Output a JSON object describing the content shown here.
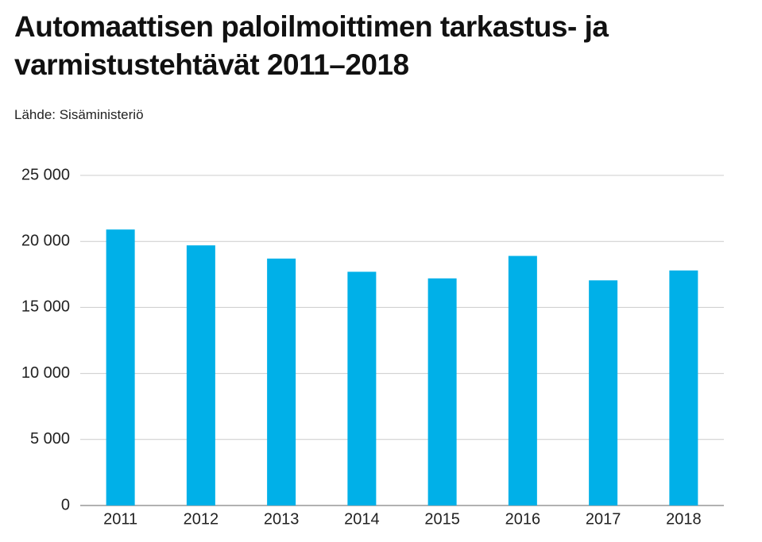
{
  "chart_data": {
    "type": "bar",
    "title": "Automaattisen paloilmoittimen tarkastus- ja varmistustehtävät 2011–2018",
    "subtitle": "Lähde: Sisäministeriö",
    "categories": [
      "2011",
      "2012",
      "2013",
      "2014",
      "2015",
      "2016",
      "2017",
      "2018"
    ],
    "values": [
      20900,
      19700,
      18700,
      17700,
      17200,
      18900,
      17050,
      17800
    ],
    "color": "#00b0e8",
    "ylim": [
      0,
      25000
    ],
    "yticks": [
      0,
      {
        "value": 5000,
        "label": "5 000"
      },
      {
        "value": 10000,
        "label": "10 000"
      },
      {
        "value": 15000,
        "label": "15 000"
      },
      {
        "value": 20000,
        "label": "20 000"
      },
      {
        "value": 25000,
        "label": "25 000"
      }
    ],
    "grid": true
  }
}
